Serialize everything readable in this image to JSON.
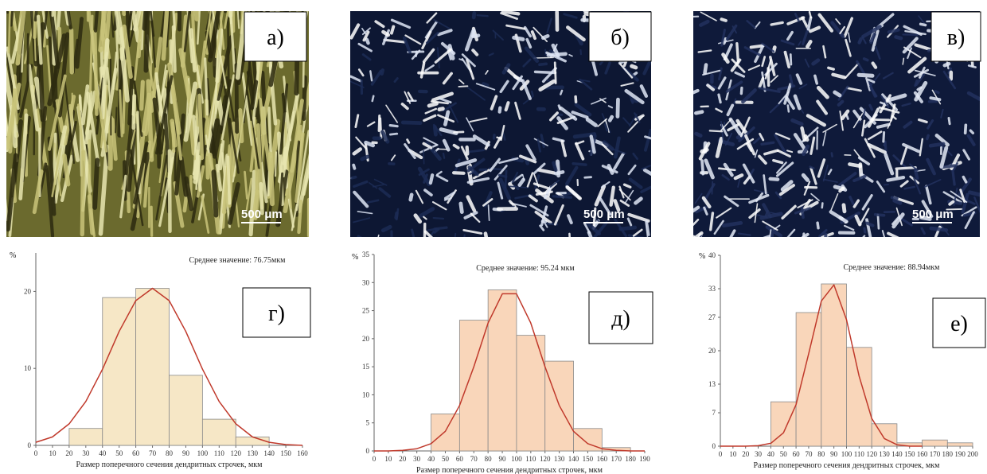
{
  "panels": [
    {
      "label": "а)",
      "scale_bar": "500 μm"
    },
    {
      "label": "б)",
      "scale_bar": "500 μm"
    },
    {
      "label": "в)",
      "scale_bar": "500 μm"
    }
  ],
  "chart_data": [
    {
      "type": "histogram",
      "label": "г)",
      "title": "Среднее значение: 76.75мкм",
      "y_label": "%",
      "x_label": "Размер поперечного сечения дендритных строчек, мкм",
      "bins": [
        20,
        40,
        60,
        80,
        100,
        120,
        140
      ],
      "values": [
        2.2,
        19.2,
        20.4,
        9.1,
        3.4,
        1.1
      ],
      "color": "#f6e7c6",
      "edge_color": "#8a8a8a",
      "curve": {
        "color": "#c0392b",
        "x": [
          0,
          10,
          20,
          30,
          40,
          50,
          60,
          70,
          80,
          90,
          100,
          110,
          120,
          130,
          140,
          150,
          160
        ],
        "values": [
          0.4,
          1.1,
          2.8,
          5.7,
          9.9,
          14.8,
          18.8,
          20.4,
          18.8,
          14.8,
          9.9,
          5.7,
          2.8,
          1.1,
          0.4,
          0.1,
          0.0
        ]
      },
      "xlim": [
        0,
        160
      ],
      "xticks": [
        0,
        10,
        20,
        30,
        40,
        50,
        60,
        70,
        80,
        90,
        100,
        110,
        120,
        130,
        140,
        150,
        160
      ],
      "ylim": [
        0,
        25
      ],
      "yticks": [
        0,
        10,
        20
      ]
    },
    {
      "type": "histogram",
      "label": "д)",
      "title": "Среднее значение: 95.24 мкм",
      "y_label": "%",
      "x_label": "Размер поперечного сечения дендритных строчек, мкм",
      "bins": [
        40,
        60,
        80,
        100,
        120,
        140,
        160,
        180
      ],
      "values": [
        6.6,
        23.3,
        28.7,
        20.6,
        16.0,
        4.0,
        0.6
      ],
      "color": "#f9d6ba",
      "edge_color": "#8a8a8a",
      "curve": {
        "color": "#c0392b",
        "x": [
          0,
          10,
          20,
          30,
          40,
          50,
          60,
          70,
          80,
          90,
          100,
          110,
          120,
          130,
          140,
          150,
          160,
          170,
          180,
          190
        ],
        "values": [
          0.0,
          0.0,
          0.1,
          0.4,
          1.3,
          3.5,
          8.1,
          15.0,
          22.8,
          28.0,
          28.0,
          22.8,
          15.0,
          8.1,
          3.5,
          1.3,
          0.4,
          0.1,
          0.0,
          0.0
        ]
      },
      "xlim": [
        0,
        190
      ],
      "xticks": [
        0,
        10,
        20,
        30,
        40,
        50,
        60,
        70,
        80,
        90,
        100,
        110,
        120,
        130,
        140,
        150,
        160,
        170,
        180,
        190
      ],
      "ylim": [
        0,
        35
      ],
      "yticks": [
        0,
        5,
        10,
        15,
        20,
        25,
        30,
        35
      ]
    },
    {
      "type": "histogram",
      "label": "е)",
      "title": "Среднее значение: 88.94мкм",
      "y_label": "%",
      "x_label": "Размер поперечного сечения дендритных строчек, мкм",
      "bins": [
        40,
        60,
        80,
        100,
        120,
        140,
        160,
        180,
        200
      ],
      "values": [
        9.3,
        28.0,
        34.0,
        20.7,
        4.7,
        0.7,
        1.3,
        0.7
      ],
      "color": "#f9d6ba",
      "edge_color": "#8a8a8a",
      "curve": {
        "color": "#c0392b",
        "x": [
          0,
          10,
          20,
          30,
          40,
          50,
          60,
          70,
          80,
          90,
          100,
          110,
          120,
          130,
          140,
          150,
          160
        ],
        "values": [
          0.0,
          0.0,
          0.0,
          0.1,
          0.6,
          2.8,
          8.7,
          19.4,
          30.4,
          33.8,
          26.5,
          14.7,
          5.8,
          1.6,
          0.3,
          0.0,
          0.0
        ]
      },
      "xlim": [
        0,
        200
      ],
      "xticks": [
        0,
        10,
        20,
        30,
        40,
        50,
        60,
        70,
        80,
        90,
        100,
        110,
        120,
        130,
        140,
        150,
        160,
        170,
        180,
        190,
        200
      ],
      "ylim": [
        0,
        40
      ],
      "yticks": [
        0,
        7,
        13,
        20,
        27,
        33,
        40
      ]
    }
  ]
}
